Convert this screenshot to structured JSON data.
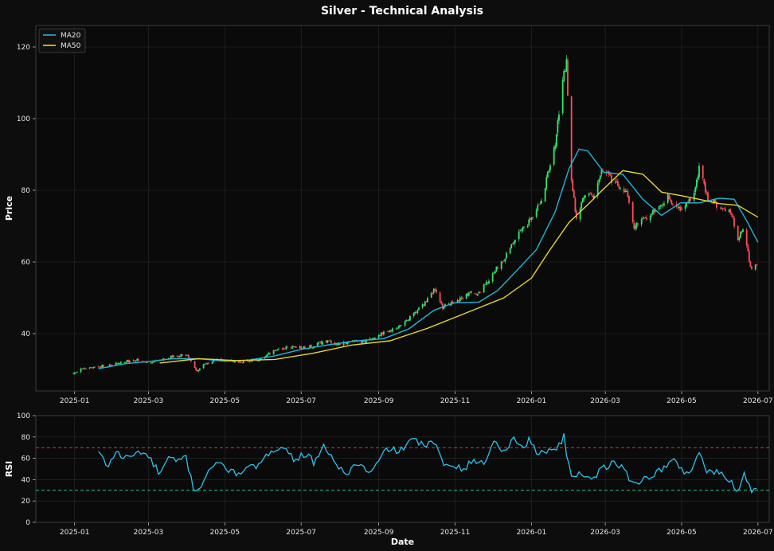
{
  "title": "Silver - Technical Analysis",
  "colors": {
    "background": "#0d0d0d",
    "panel": "#0a0a0a",
    "grid": "#2a2a2a",
    "up": "#2ee86d",
    "down": "#ff4d5a",
    "ma20": "#1fb6d9",
    "ma50": "#e6d52c",
    "rsi": "#2ac3ee",
    "overbought": "#d13a3a",
    "oversold": "#2ec27e"
  },
  "chart_data": [
    {
      "type": "candlestick",
      "ylabel": "Price",
      "xlabel": "",
      "grid": true,
      "legend_position": "top-left",
      "xlim": [
        "2024-12-01",
        "2026-07-10"
      ],
      "ylim": [
        24,
        126
      ],
      "yticks": [
        40,
        60,
        80,
        100,
        120
      ],
      "xticks": [
        "2025-01",
        "2025-03",
        "2025-05",
        "2025-07",
        "2025-09",
        "2025-11",
        "2026-01",
        "2026-03",
        "2026-05",
        "2026-07"
      ],
      "close_series": [
        [
          "2024-12-31",
          29.0
        ],
        [
          "2025-01-10",
          30.5
        ],
        [
          "2025-01-20",
          30.8
        ],
        [
          "2025-01-31",
          31.2
        ],
        [
          "2025-02-10",
          32.2
        ],
        [
          "2025-02-20",
          32.8
        ],
        [
          "2025-02-28",
          32.0
        ],
        [
          "2025-03-10",
          32.8
        ],
        [
          "2025-03-20",
          33.5
        ],
        [
          "2025-03-31",
          34.2
        ],
        [
          "2025-04-04",
          32.0
        ],
        [
          "2025-04-09",
          29.5
        ],
        [
          "2025-04-15",
          31.5
        ],
        [
          "2025-04-25",
          32.8
        ],
        [
          "2025-05-05",
          32.5
        ],
        [
          "2025-05-15",
          32.2
        ],
        [
          "2025-05-31",
          33.0
        ],
        [
          "2025-06-10",
          35.5
        ],
        [
          "2025-06-20",
          36.2
        ],
        [
          "2025-06-30",
          36.0
        ],
        [
          "2025-07-10",
          36.5
        ],
        [
          "2025-07-20",
          38.0
        ],
        [
          "2025-07-31",
          37.0
        ],
        [
          "2025-08-10",
          37.8
        ],
        [
          "2025-08-20",
          37.8
        ],
        [
          "2025-08-31",
          39.5
        ],
        [
          "2025-09-10",
          41.0
        ],
        [
          "2025-09-20",
          42.5
        ],
        [
          "2025-09-30",
          46.0
        ],
        [
          "2025-10-08",
          48.5
        ],
        [
          "2025-10-15",
          52.5
        ],
        [
          "2025-10-22",
          47.5
        ],
        [
          "2025-10-31",
          48.5
        ],
        [
          "2025-11-10",
          51.0
        ],
        [
          "2025-11-20",
          51.5
        ],
        [
          "2025-11-30",
          56.0
        ],
        [
          "2025-12-10",
          61.0
        ],
        [
          "2025-12-20",
          67.0
        ],
        [
          "2025-12-31",
          71.5
        ],
        [
          "2026-01-10",
          78.5
        ],
        [
          "2026-01-20",
          93.0
        ],
        [
          "2026-01-26",
          110.0
        ],
        [
          "2026-01-29",
          116.0
        ],
        [
          "2026-02-01",
          86.0
        ],
        [
          "2026-02-06",
          72.0
        ],
        [
          "2026-02-12",
          79.0
        ],
        [
          "2026-02-20",
          78.5
        ],
        [
          "2026-02-28",
          87.0
        ],
        [
          "2026-03-06",
          83.0
        ],
        [
          "2026-03-12",
          81.0
        ],
        [
          "2026-03-18",
          79.0
        ],
        [
          "2026-03-24",
          70.0
        ],
        [
          "2026-03-31",
          71.5
        ],
        [
          "2026-04-10",
          74.5
        ],
        [
          "2026-04-20",
          78.0
        ],
        [
          "2026-04-30",
          75.0
        ],
        [
          "2026-05-10",
          78.0
        ],
        [
          "2026-05-15",
          86.0
        ],
        [
          "2026-05-22",
          78.0
        ],
        [
          "2026-05-31",
          75.5
        ],
        [
          "2026-06-10",
          73.5
        ],
        [
          "2026-06-15",
          66.5
        ],
        [
          "2026-06-20",
          70.0
        ],
        [
          "2026-06-25",
          58.5
        ],
        [
          "2026-06-30",
          59.0
        ]
      ],
      "series": [
        {
          "name": "MA20",
          "points": [
            [
              "2025-01-20",
              30.2
            ],
            [
              "2025-02-10",
              31.6
            ],
            [
              "2025-03-01",
              32.2
            ],
            [
              "2025-03-20",
              33.0
            ],
            [
              "2025-04-10",
              33.0
            ],
            [
              "2025-05-01",
              32.3
            ],
            [
              "2025-05-20",
              32.6
            ],
            [
              "2025-06-10",
              33.8
            ],
            [
              "2025-07-01",
              35.6
            ],
            [
              "2025-07-25",
              37.0
            ],
            [
              "2025-08-15",
              38.0
            ],
            [
              "2025-09-05",
              38.6
            ],
            [
              "2025-09-25",
              41.3
            ],
            [
              "2025-10-15",
              46.5
            ],
            [
              "2025-10-31",
              48.6
            ],
            [
              "2025-11-20",
              48.8
            ],
            [
              "2025-12-05",
              52.0
            ],
            [
              "2025-12-20",
              57.5
            ],
            [
              "2026-01-05",
              63.5
            ],
            [
              "2026-01-20",
              74.0
            ],
            [
              "2026-01-31",
              86.0
            ],
            [
              "2026-02-08",
              91.5
            ],
            [
              "2026-02-15",
              91.0
            ],
            [
              "2026-02-28",
              85.0
            ],
            [
              "2026-03-15",
              84.5
            ],
            [
              "2026-03-31",
              77.5
            ],
            [
              "2026-04-15",
              73.0
            ],
            [
              "2026-04-30",
              76.5
            ],
            [
              "2026-05-15",
              76.5
            ],
            [
              "2026-05-31",
              77.8
            ],
            [
              "2026-06-12",
              77.5
            ],
            [
              "2026-06-22",
              71.5
            ],
            [
              "2026-07-01",
              65.5
            ]
          ]
        },
        {
          "name": "MA50",
          "points": [
            [
              "2025-03-10",
              31.8
            ],
            [
              "2025-04-10",
              33.0
            ],
            [
              "2025-05-10",
              32.5
            ],
            [
              "2025-06-10",
              32.8
            ],
            [
              "2025-07-10",
              34.5
            ],
            [
              "2025-08-10",
              36.8
            ],
            [
              "2025-09-10",
              38.0
            ],
            [
              "2025-10-10",
              41.5
            ],
            [
              "2025-11-10",
              45.8
            ],
            [
              "2025-12-10",
              50.0
            ],
            [
              "2026-01-01",
              55.5
            ],
            [
              "2026-01-15",
              63.0
            ],
            [
              "2026-01-31",
              71.0
            ],
            [
              "2026-02-15",
              76.0
            ],
            [
              "2026-02-28",
              80.5
            ],
            [
              "2026-03-15",
              85.5
            ],
            [
              "2026-03-31",
              84.5
            ],
            [
              "2026-04-15",
              79.5
            ],
            [
              "2026-05-01",
              78.5
            ],
            [
              "2026-05-15",
              77.5
            ],
            [
              "2026-05-31",
              76.3
            ],
            [
              "2026-06-15",
              75.8
            ],
            [
              "2026-07-01",
              72.5
            ]
          ]
        }
      ]
    },
    {
      "type": "line",
      "ylabel": "RSI",
      "xlabel": "Date",
      "grid": true,
      "xlim": [
        "2024-12-01",
        "2026-07-10"
      ],
      "ylim": [
        0,
        100
      ],
      "yticks": [
        0,
        20,
        40,
        60,
        80,
        100
      ],
      "xticks": [
        "2025-01",
        "2025-03",
        "2025-05",
        "2025-07",
        "2025-09",
        "2025-11",
        "2026-01",
        "2026-03",
        "2026-05",
        "2026-07"
      ],
      "reference_lines": [
        {
          "y": 70,
          "label": "overbought"
        },
        {
          "y": 30,
          "label": "oversold"
        }
      ],
      "series": [
        {
          "name": "RSI",
          "points": [
            [
              "2025-01-20",
              66
            ],
            [
              "2025-01-27",
              52
            ],
            [
              "2025-02-03",
              66
            ],
            [
              "2025-02-10",
              60
            ],
            [
              "2025-02-17",
              63
            ],
            [
              "2025-02-24",
              67
            ],
            [
              "2025-03-03",
              58
            ],
            [
              "2025-03-10",
              45
            ],
            [
              "2025-03-17",
              60
            ],
            [
              "2025-03-24",
              56
            ],
            [
              "2025-03-31",
              62
            ],
            [
              "2025-04-03",
              45
            ],
            [
              "2025-04-07",
              29
            ],
            [
              "2025-04-12",
              34
            ],
            [
              "2025-04-18",
              50
            ],
            [
              "2025-04-28",
              55
            ],
            [
              "2025-05-08",
              46
            ],
            [
              "2025-05-20",
              50
            ],
            [
              "2025-05-31",
              55
            ],
            [
              "2025-06-07",
              68
            ],
            [
              "2025-06-15",
              72
            ],
            [
              "2025-06-25",
              60
            ],
            [
              "2025-07-05",
              64
            ],
            [
              "2025-07-12",
              55
            ],
            [
              "2025-07-20",
              72
            ],
            [
              "2025-07-28",
              56
            ],
            [
              "2025-08-05",
              44
            ],
            [
              "2025-08-15",
              56
            ],
            [
              "2025-08-25",
              45
            ],
            [
              "2025-08-31",
              55
            ],
            [
              "2025-09-08",
              70
            ],
            [
              "2025-09-16",
              66
            ],
            [
              "2025-09-24",
              73
            ],
            [
              "2025-10-01",
              78
            ],
            [
              "2025-10-08",
              70
            ],
            [
              "2025-10-15",
              76
            ],
            [
              "2025-10-22",
              55
            ],
            [
              "2025-10-31",
              55
            ],
            [
              "2025-11-08",
              50
            ],
            [
              "2025-11-16",
              58
            ],
            [
              "2025-11-24",
              55
            ],
            [
              "2025-12-01",
              75
            ],
            [
              "2025-12-10",
              68
            ],
            [
              "2025-12-18",
              78
            ],
            [
              "2025-12-26",
              70
            ],
            [
              "2025-12-31",
              80
            ],
            [
              "2026-01-05",
              62
            ],
            [
              "2026-01-12",
              68
            ],
            [
              "2026-01-20",
              68
            ],
            [
              "2026-01-27",
              80
            ],
            [
              "2026-02-01",
              44
            ],
            [
              "2026-02-10",
              46
            ],
            [
              "2026-02-20",
              42
            ],
            [
              "2026-02-28",
              52
            ],
            [
              "2026-03-08",
              55
            ],
            [
              "2026-03-16",
              50
            ],
            [
              "2026-03-23",
              36
            ],
            [
              "2026-03-31",
              40
            ],
            [
              "2026-04-08",
              45
            ],
            [
              "2026-04-16",
              50
            ],
            [
              "2026-04-24",
              58
            ],
            [
              "2026-04-30",
              52
            ],
            [
              "2026-05-06",
              44
            ],
            [
              "2026-05-12",
              58
            ],
            [
              "2026-05-16",
              68
            ],
            [
              "2026-05-20",
              48
            ],
            [
              "2026-05-31",
              46
            ],
            [
              "2026-06-08",
              40
            ],
            [
              "2026-06-12",
              35
            ],
            [
              "2026-06-15",
              29
            ],
            [
              "2026-06-20",
              45
            ],
            [
              "2026-06-23",
              38
            ],
            [
              "2026-06-26",
              30
            ],
            [
              "2026-07-01",
              33
            ]
          ]
        }
      ]
    }
  ]
}
